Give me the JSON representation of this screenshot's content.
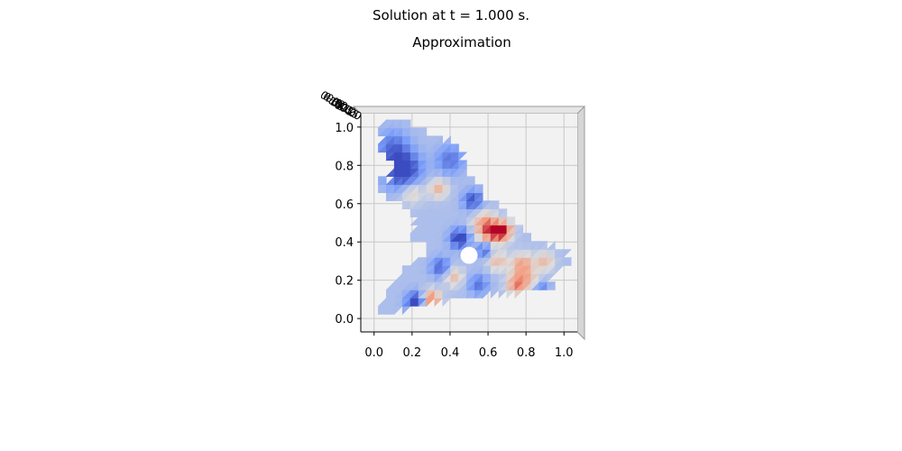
{
  "figure": {
    "suptitle": "Solution at t = 1.000 s.",
    "title": "Approximation"
  },
  "chart_data": {
    "type": "heatmap",
    "projection": "3d-surface viewed from top",
    "colormap": "coolwarm",
    "title": "Approximation",
    "xlabel": "",
    "ylabel": "",
    "x_ticks": [
      "0.0",
      "0.2",
      "0.4",
      "0.6",
      "0.8",
      "1.0"
    ],
    "y_ticks": [
      "0.0",
      "0.2",
      "0.4",
      "0.6",
      "0.8",
      "1.0"
    ],
    "x_tick_values": [
      0.0,
      0.2,
      0.4,
      0.6,
      0.8,
      1.0
    ],
    "y_tick_values": [
      0.0,
      0.2,
      0.4,
      0.6,
      0.8,
      1.0
    ],
    "xlim": [
      -0.07,
      1.07
    ],
    "ylim": [
      -0.07,
      1.07
    ],
    "z_tick_labels_overlapping": true,
    "grid": true,
    "hole": {
      "x": 0.5,
      "y": 0.33,
      "r": 0.045
    },
    "domain_outline": [
      [
        0.0,
        0.0
      ],
      [
        0.08,
        0.02
      ],
      [
        0.2,
        0.06
      ],
      [
        0.3,
        0.08
      ],
      [
        0.4,
        0.09
      ],
      [
        0.45,
        0.1
      ],
      [
        0.52,
        0.1
      ],
      [
        0.62,
        0.13
      ],
      [
        0.72,
        0.13
      ],
      [
        0.8,
        0.14
      ],
      [
        0.9,
        0.15
      ],
      [
        0.98,
        0.17
      ],
      [
        0.92,
        0.2
      ],
      [
        0.98,
        0.26
      ],
      [
        1.05,
        0.3
      ],
      [
        1.0,
        0.36
      ],
      [
        0.9,
        0.39
      ],
      [
        0.84,
        0.42
      ],
      [
        0.8,
        0.45
      ],
      [
        0.76,
        0.5
      ],
      [
        0.72,
        0.54
      ],
      [
        0.66,
        0.58
      ],
      [
        0.6,
        0.62
      ],
      [
        0.55,
        0.7
      ],
      [
        0.5,
        0.77
      ],
      [
        0.47,
        0.84
      ],
      [
        0.44,
        0.92
      ],
      [
        0.36,
        0.94
      ],
      [
        0.3,
        0.96
      ],
      [
        0.25,
        1.0
      ],
      [
        0.15,
        1.03
      ],
      [
        0.05,
        1.05
      ],
      [
        0.02,
        0.98
      ],
      [
        0.05,
        0.92
      ],
      [
        0.0,
        0.9
      ],
      [
        0.05,
        0.85
      ],
      [
        0.1,
        0.8
      ],
      [
        0.08,
        0.72
      ],
      [
        0.03,
        0.75
      ],
      [
        0.02,
        0.68
      ],
      [
        0.1,
        0.62
      ],
      [
        0.16,
        0.58
      ],
      [
        0.2,
        0.54
      ],
      [
        0.22,
        0.48
      ],
      [
        0.2,
        0.42
      ],
      [
        0.26,
        0.4
      ],
      [
        0.3,
        0.37
      ],
      [
        0.28,
        0.33
      ],
      [
        0.22,
        0.3
      ],
      [
        0.15,
        0.26
      ],
      [
        0.1,
        0.18
      ],
      [
        0.06,
        0.12
      ],
      [
        0.04,
        0.06
      ],
      [
        0.0,
        0.02
      ]
    ],
    "hotspots": [
      {
        "x": 0.15,
        "y": 0.78,
        "v": -1.0,
        "r": 0.09
      },
      {
        "x": 0.1,
        "y": 0.9,
        "v": -0.5,
        "r": 0.08
      },
      {
        "x": 0.2,
        "y": 0.66,
        "v": 0.4,
        "r": 0.06
      },
      {
        "x": 0.34,
        "y": 0.68,
        "v": 0.55,
        "r": 0.05
      },
      {
        "x": 0.4,
        "y": 0.83,
        "v": -0.5,
        "r": 0.07
      },
      {
        "x": 0.52,
        "y": 0.62,
        "v": -0.7,
        "r": 0.05
      },
      {
        "x": 0.58,
        "y": 0.5,
        "v": 0.6,
        "r": 0.06
      },
      {
        "x": 0.62,
        "y": 0.45,
        "v": 0.8,
        "r": 0.06
      },
      {
        "x": 0.68,
        "y": 0.46,
        "v": 1.0,
        "r": 0.05
      },
      {
        "x": 0.45,
        "y": 0.42,
        "v": -0.9,
        "r": 0.05
      },
      {
        "x": 0.58,
        "y": 0.36,
        "v": -0.6,
        "r": 0.04
      },
      {
        "x": 0.65,
        "y": 0.3,
        "v": 0.5,
        "r": 0.05
      },
      {
        "x": 0.78,
        "y": 0.28,
        "v": 0.7,
        "r": 0.06
      },
      {
        "x": 0.82,
        "y": 0.2,
        "v": 0.4,
        "r": 0.05
      },
      {
        "x": 0.75,
        "y": 0.18,
        "v": 0.8,
        "r": 0.05
      },
      {
        "x": 0.9,
        "y": 0.3,
        "v": 0.5,
        "r": 0.05
      },
      {
        "x": 0.35,
        "y": 0.27,
        "v": -0.6,
        "r": 0.05
      },
      {
        "x": 0.42,
        "y": 0.22,
        "v": 0.5,
        "r": 0.05
      },
      {
        "x": 0.3,
        "y": 0.1,
        "v": 0.9,
        "r": 0.05
      },
      {
        "x": 0.22,
        "y": 0.09,
        "v": -0.9,
        "r": 0.05
      },
      {
        "x": 0.55,
        "y": 0.18,
        "v": -0.5,
        "r": 0.05
      },
      {
        "x": 0.88,
        "y": 0.15,
        "v": -0.5,
        "r": 0.04
      }
    ]
  }
}
